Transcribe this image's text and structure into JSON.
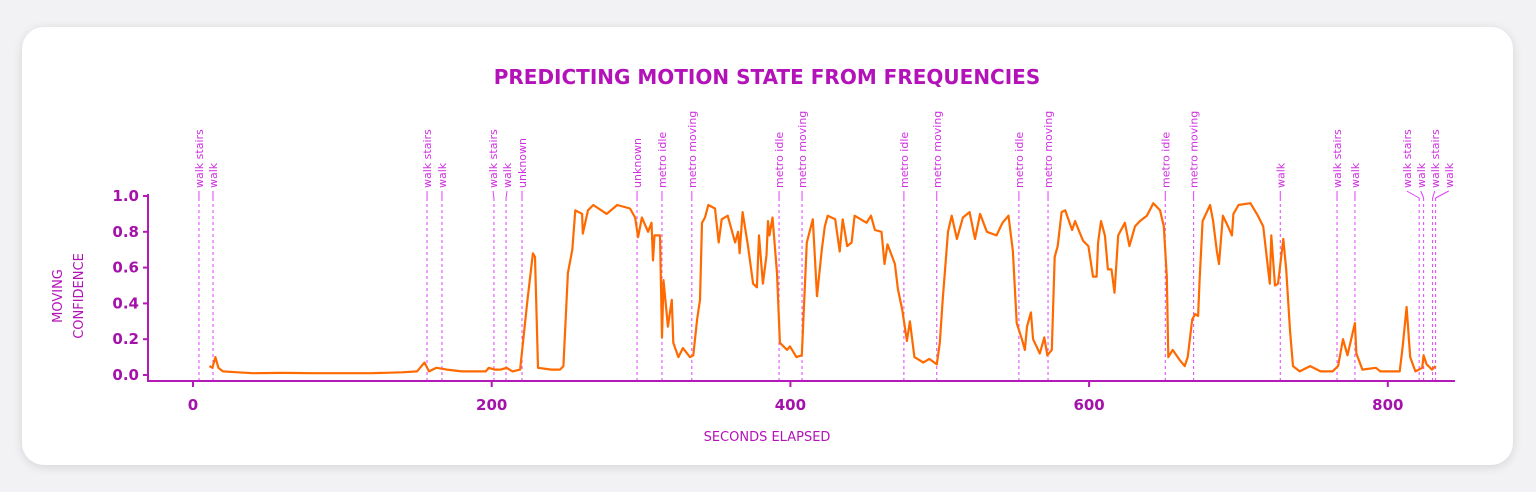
{
  "chart_data": {
    "type": "line",
    "title": "PREDICTING MOTION STATE FROM FREQUENCIES",
    "xlabel": "SECONDS ELAPSED",
    "ylabel": [
      "MOVING",
      "CONFIDENCE"
    ],
    "xlim": [
      -31,
      847
    ],
    "ylim": [
      0,
      1.0
    ],
    "xticks": [
      0,
      200,
      400,
      600,
      800
    ],
    "xtick_labels": [
      "0",
      "200",
      "400",
      "600",
      "800"
    ],
    "yticks": [
      0,
      0.2,
      0.4,
      0.6,
      0.8,
      1.0
    ],
    "ytick_labels": [
      "0.0",
      "0.2",
      "0.4",
      "0.6",
      "0.8",
      "1.0"
    ],
    "colors": {
      "line": "#ff6a00",
      "axis": "#b31ab8",
      "annotation": "#e040fb",
      "title": "#b312b8"
    },
    "annotations": [
      {
        "x": 4,
        "label": "walk stairs"
      },
      {
        "x": 13.4,
        "label": "walk"
      },
      {
        "x": 156.7,
        "label": "walk stairs"
      },
      {
        "x": 166.7,
        "label": "walk"
      },
      {
        "x": 201.5,
        "label": "walk stairs"
      },
      {
        "x": 209.6,
        "label": "walk"
      },
      {
        "x": 220.3,
        "label": "unknown"
      },
      {
        "x": 297.3,
        "label": "unknown"
      },
      {
        "x": 314,
        "label": "metro idle"
      },
      {
        "x": 334,
        "label": "metro moving"
      },
      {
        "x": 392.4,
        "label": "metro idle"
      },
      {
        "x": 407.8,
        "label": "metro moving"
      },
      {
        "x": 476,
        "label": "metro idle"
      },
      {
        "x": 498,
        "label": "metro moving"
      },
      {
        "x": 553,
        "label": "metro idle"
      },
      {
        "x": 572.5,
        "label": "metro moving"
      },
      {
        "x": 651,
        "label": "metro idle"
      },
      {
        "x": 670,
        "label": "metro moving"
      },
      {
        "x": 728,
        "label": "walk"
      },
      {
        "x": 766,
        "label": "walk stairs"
      },
      {
        "x": 778,
        "label": "walk"
      },
      {
        "x": 821,
        "label": "walk stairs"
      },
      {
        "x": 824,
        "label": "walk"
      },
      {
        "x": 830,
        "label": "walk stairs"
      },
      {
        "x": 832,
        "label": "walk"
      }
    ],
    "series": [
      {
        "name": "moving confidence",
        "points": [
          [
            11,
            0.05
          ],
          [
            13,
            0.04
          ],
          [
            15,
            0.1
          ],
          [
            17,
            0.04
          ],
          [
            20,
            0.02
          ],
          [
            30,
            0.015
          ],
          [
            40,
            0.01
          ],
          [
            60,
            0.012
          ],
          [
            80,
            0.01
          ],
          [
            100,
            0.01
          ],
          [
            120,
            0.01
          ],
          [
            140,
            0.015
          ],
          [
            150,
            0.02
          ],
          [
            155,
            0.07
          ],
          [
            158,
            0.02
          ],
          [
            163,
            0.04
          ],
          [
            170,
            0.03
          ],
          [
            180,
            0.02
          ],
          [
            196,
            0.02
          ],
          [
            198,
            0.04
          ],
          [
            202,
            0.03
          ],
          [
            206,
            0.03
          ],
          [
            210,
            0.04
          ],
          [
            214,
            0.02
          ],
          [
            219,
            0.03
          ],
          [
            224,
            0.42
          ],
          [
            227.6,
            0.68
          ],
          [
            229,
            0.66
          ],
          [
            231,
            0.04
          ],
          [
            240,
            0.03
          ],
          [
            245.7,
            0.03
          ],
          [
            248,
            0.05
          ],
          [
            251,
            0.57
          ],
          [
            254,
            0.7
          ],
          [
            256,
            0.92
          ],
          [
            260.5,
            0.9
          ],
          [
            261,
            0.79
          ],
          [
            264.5,
            0.92
          ],
          [
            268,
            0.95
          ],
          [
            277,
            0.9
          ],
          [
            284,
            0.95
          ],
          [
            292.6,
            0.93
          ],
          [
            296,
            0.88
          ],
          [
            298,
            0.77
          ],
          [
            300.6,
            0.88
          ],
          [
            304.7,
            0.8
          ],
          [
            307,
            0.85
          ],
          [
            308,
            0.64
          ],
          [
            309,
            0.78
          ],
          [
            312.7,
            0.78
          ],
          [
            314,
            0.21
          ],
          [
            315,
            0.53
          ],
          [
            318,
            0.27
          ],
          [
            320.6,
            0.42
          ],
          [
            321.6,
            0.18
          ],
          [
            325,
            0.1
          ],
          [
            328,
            0.15
          ],
          [
            332.7,
            0.1
          ],
          [
            335,
            0.11
          ],
          [
            337.5,
            0.31
          ],
          [
            339.5,
            0.42
          ],
          [
            340.8,
            0.85
          ],
          [
            342.8,
            0.88
          ],
          [
            345,
            0.95
          ],
          [
            349.5,
            0.93
          ],
          [
            352,
            0.74
          ],
          [
            354,
            0.87
          ],
          [
            358,
            0.89
          ],
          [
            363,
            0.74
          ],
          [
            365,
            0.8
          ],
          [
            366,
            0.68
          ],
          [
            368,
            0.91
          ],
          [
            371.6,
            0.72
          ],
          [
            375,
            0.51
          ],
          [
            377.6,
            0.49
          ],
          [
            379,
            0.78
          ],
          [
            381.6,
            0.51
          ],
          [
            384,
            0.67
          ],
          [
            385,
            0.86
          ],
          [
            386,
            0.78
          ],
          [
            388,
            0.88
          ],
          [
            391,
            0.57
          ],
          [
            393,
            0.18
          ],
          [
            397.7,
            0.14
          ],
          [
            399.7,
            0.16
          ],
          [
            404,
            0.1
          ],
          [
            407.6,
            0.11
          ],
          [
            411,
            0.74
          ],
          [
            415,
            0.87
          ],
          [
            417.8,
            0.44
          ],
          [
            421,
            0.7
          ],
          [
            423,
            0.83
          ],
          [
            425,
            0.89
          ],
          [
            430,
            0.87
          ],
          [
            433,
            0.69
          ],
          [
            435,
            0.87
          ],
          [
            438,
            0.72
          ],
          [
            441,
            0.74
          ],
          [
            443,
            0.89
          ],
          [
            451,
            0.85
          ],
          [
            454,
            0.89
          ],
          [
            456.6,
            0.81
          ],
          [
            461,
            0.8
          ],
          [
            463,
            0.62
          ],
          [
            465,
            0.73
          ],
          [
            470,
            0.62
          ],
          [
            472,
            0.48
          ],
          [
            475,
            0.36
          ],
          [
            478,
            0.19
          ],
          [
            480,
            0.3
          ],
          [
            483,
            0.1
          ],
          [
            489,
            0.07
          ],
          [
            493,
            0.09
          ],
          [
            498,
            0.06
          ],
          [
            500,
            0.18
          ],
          [
            502,
            0.42
          ],
          [
            505.5,
            0.8
          ],
          [
            508,
            0.89
          ],
          [
            511.5,
            0.76
          ],
          [
            515.5,
            0.88
          ],
          [
            520,
            0.91
          ],
          [
            523.6,
            0.76
          ],
          [
            527,
            0.9
          ],
          [
            531.6,
            0.8
          ],
          [
            538,
            0.78
          ],
          [
            542,
            0.85
          ],
          [
            546,
            0.89
          ],
          [
            549,
            0.69
          ],
          [
            551.5,
            0.29
          ],
          [
            555,
            0.2
          ],
          [
            557,
            0.14
          ],
          [
            558.4,
            0.27
          ],
          [
            561,
            0.35
          ],
          [
            562.5,
            0.2
          ],
          [
            567,
            0.12
          ],
          [
            570,
            0.21
          ],
          [
            572,
            0.11
          ],
          [
            575,
            0.14
          ],
          [
            577,
            0.66
          ],
          [
            579,
            0.72
          ],
          [
            581.6,
            0.91
          ],
          [
            584,
            0.92
          ],
          [
            588.6,
            0.81
          ],
          [
            590.6,
            0.86
          ],
          [
            594,
            0.79
          ],
          [
            596,
            0.75
          ],
          [
            599.5,
            0.72
          ],
          [
            602.6,
            0.55
          ],
          [
            605,
            0.55
          ],
          [
            606,
            0.74
          ],
          [
            608,
            0.86
          ],
          [
            610.6,
            0.78
          ],
          [
            612.6,
            0.59
          ],
          [
            615,
            0.59
          ],
          [
            617,
            0.46
          ],
          [
            619.5,
            0.78
          ],
          [
            624,
            0.85
          ],
          [
            627,
            0.72
          ],
          [
            630.7,
            0.83
          ],
          [
            634,
            0.86
          ],
          [
            638.7,
            0.89
          ],
          [
            643,
            0.96
          ],
          [
            647.5,
            0.92
          ],
          [
            650,
            0.83
          ],
          [
            652,
            0.55
          ],
          [
            653,
            0.1
          ],
          [
            656,
            0.14
          ],
          [
            661,
            0.08
          ],
          [
            664,
            0.05
          ],
          [
            666,
            0.1
          ],
          [
            669,
            0.31
          ],
          [
            671,
            0.34
          ],
          [
            673,
            0.33
          ],
          [
            674,
            0.53
          ],
          [
            676,
            0.86
          ],
          [
            681,
            0.95
          ],
          [
            683,
            0.86
          ],
          [
            685.6,
            0.69
          ],
          [
            687,
            0.62
          ],
          [
            689.6,
            0.89
          ],
          [
            693,
            0.83
          ],
          [
            695.6,
            0.78
          ],
          [
            696.6,
            0.9
          ],
          [
            700,
            0.95
          ],
          [
            708,
            0.96
          ],
          [
            713,
            0.89
          ],
          [
            716.6,
            0.83
          ],
          [
            721,
            0.51
          ],
          [
            722,
            0.78
          ],
          [
            724.5,
            0.5
          ],
          [
            726.5,
            0.51
          ],
          [
            730,
            0.76
          ],
          [
            732,
            0.59
          ],
          [
            734.5,
            0.25
          ],
          [
            736.5,
            0.05
          ],
          [
            741,
            0.02
          ],
          [
            748,
            0.05
          ],
          [
            755,
            0.02
          ],
          [
            763,
            0.02
          ],
          [
            766.7,
            0.05
          ],
          [
            770,
            0.2
          ],
          [
            773,
            0.11
          ],
          [
            778,
            0.29
          ],
          [
            779,
            0.12
          ],
          [
            783,
            0.03
          ],
          [
            792,
            0.04
          ],
          [
            795,
            0.02
          ],
          [
            808,
            0.02
          ],
          [
            810,
            0.16
          ],
          [
            812.6,
            0.38
          ],
          [
            815,
            0.1
          ],
          [
            818.5,
            0.02
          ],
          [
            823,
            0.04
          ],
          [
            824,
            0.11
          ],
          [
            826,
            0.06
          ],
          [
            829.6,
            0.03
          ],
          [
            832,
            0.05
          ]
        ]
      }
    ]
  }
}
